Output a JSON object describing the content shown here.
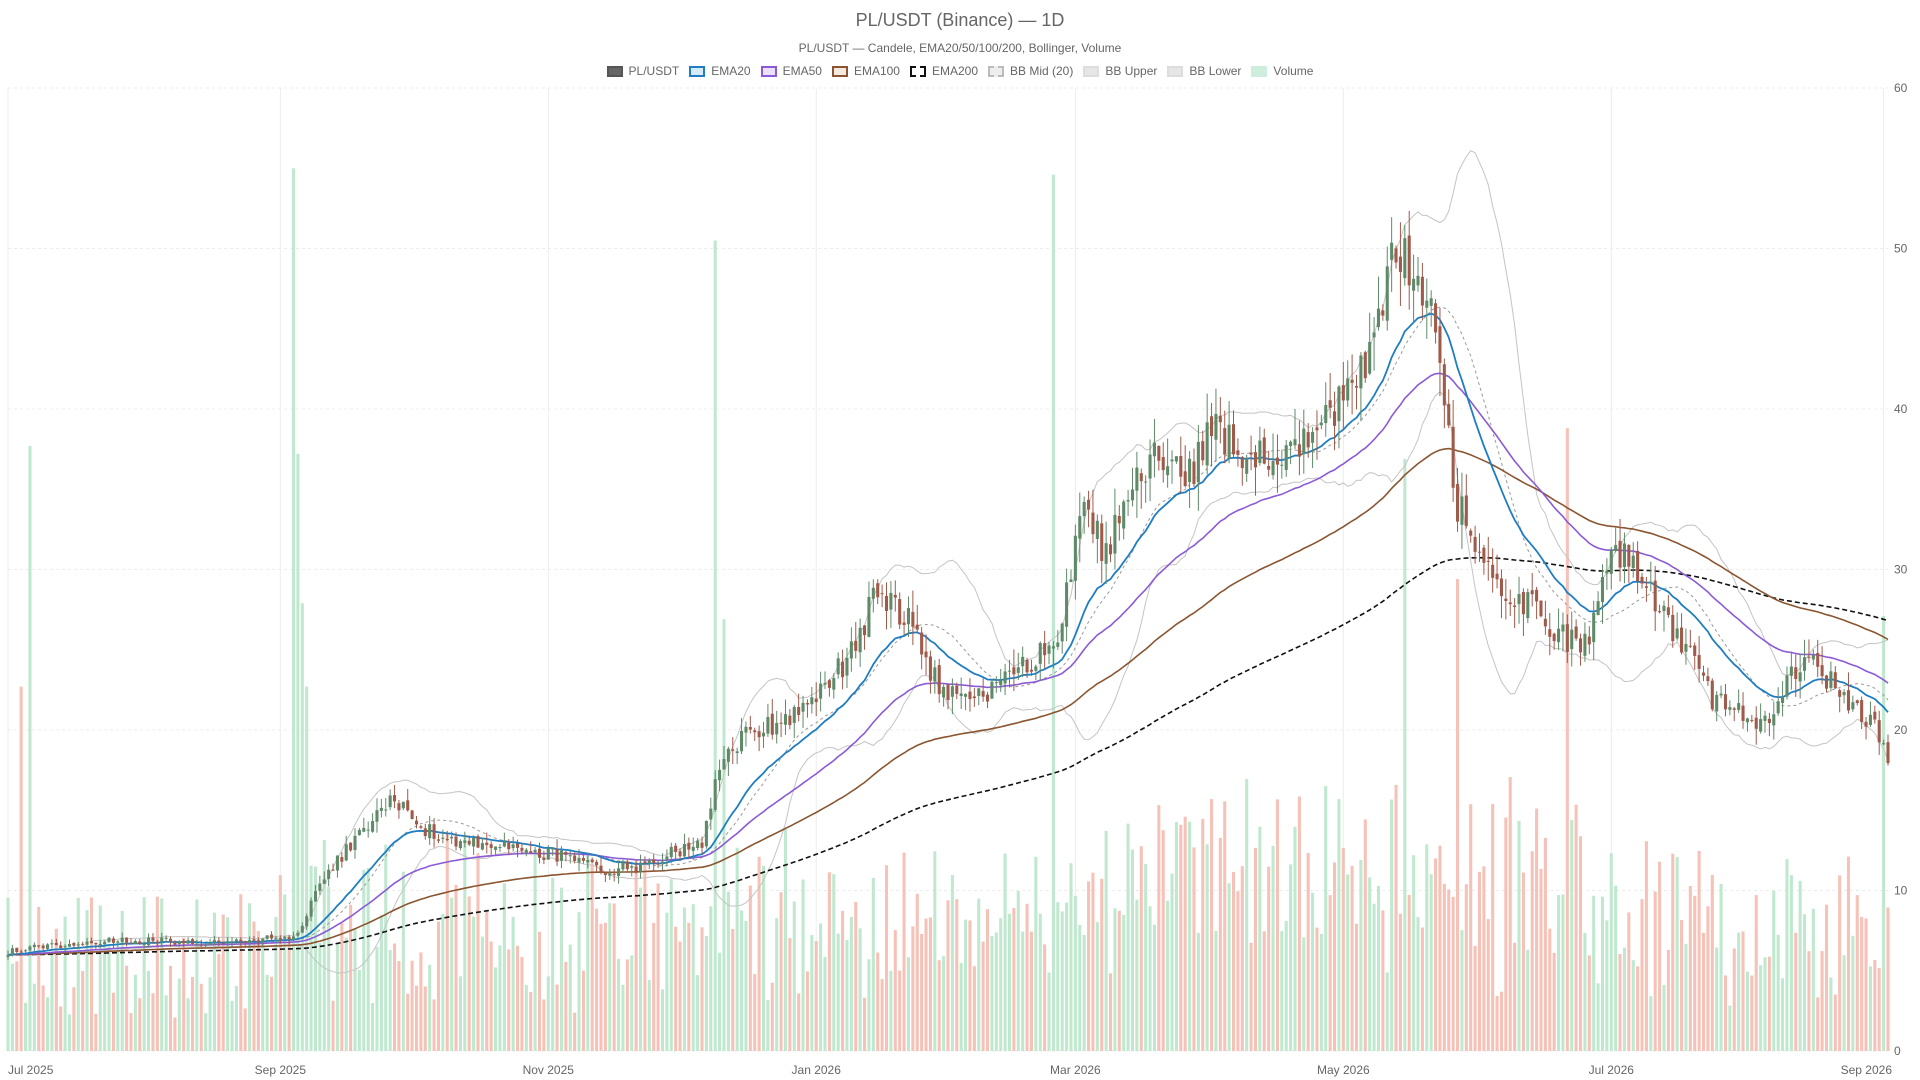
{
  "chart_data": {
    "type": "candlestick",
    "title": "PL/USDT (Binance) — 1D",
    "subtitle": "PL/USDT — Candele, EMA20/50/100/200, Bollinger, Volume",
    "legend": [
      {
        "label": "PL/USDT",
        "fill": "#666666",
        "stroke": "#555555",
        "dash": false
      },
      {
        "label": "EMA20",
        "fill": "#d6ebf7",
        "stroke": "#1f7dc2",
        "dash": false
      },
      {
        "label": "EMA50",
        "fill": "#eae0f7",
        "stroke": "#8b5ad6",
        "dash": false
      },
      {
        "label": "EMA100",
        "fill": "#f5e8df",
        "stroke": "#8a5530",
        "dash": false
      },
      {
        "label": "EMA200",
        "fill": "#ffffff",
        "stroke": "#111111",
        "dash": true
      },
      {
        "label": "BB Mid (20)",
        "fill": "#eeeeee",
        "stroke": "#bbbbbb",
        "dash": true
      },
      {
        "label": "BB Upper",
        "fill": "#e6e6e6",
        "stroke": "#dddddd",
        "dash": false
      },
      {
        "label": "BB Lower",
        "fill": "#e6e6e6",
        "stroke": "#dddddd",
        "dash": false
      },
      {
        "label": "Volume",
        "fill": "#cdeedd",
        "stroke": "#cdeedd",
        "dash": false
      }
    ],
    "x_ticks": [
      "Jul 2025",
      "Sep 2025",
      "Nov 2025",
      "Jan 2026",
      "Mar 2026",
      "May 2026",
      "Jul 2026",
      "Sep 2026"
    ],
    "x_tick_days": [
      0,
      62,
      123,
      184,
      243,
      304,
      365,
      427
    ],
    "y_ticks": [
      "0",
      "10",
      "20",
      "30",
      "40",
      "50",
      "60"
    ],
    "ylim": [
      0,
      60
    ],
    "grid": true,
    "legend_position": "top-center",
    "colors": {
      "up": "#5e8a68",
      "down": "#a05a4a",
      "vol_up": "#bfe8cf",
      "vol_down": "#f6c2b8",
      "ema20": "#1f7dc2",
      "ema50": "#8b5ad6",
      "ema100": "#8a5530",
      "ema200": "#111111",
      "bb_mid": "#999999",
      "bb_band": "#c4c4c4"
    },
    "price_anchors": {
      "days": [
        0,
        10,
        20,
        35,
        50,
        60,
        66,
        70,
        75,
        80,
        88,
        95,
        100,
        108,
        115,
        125,
        135,
        143,
        150,
        158,
        162,
        168,
        175,
        182,
        190,
        198,
        205,
        212,
        220,
        226,
        232,
        240,
        244,
        250,
        256,
        262,
        268,
        275,
        282,
        290,
        298,
        305,
        310,
        316,
        322,
        326,
        330,
        335,
        340,
        347,
        352,
        360,
        365,
        370,
        375,
        380,
        388,
        395,
        400,
        405,
        410,
        415,
        420,
        425,
        428
      ],
      "values": [
        6.2,
        6.6,
        6.8,
        6.9,
        6.7,
        7.0,
        7.2,
        10.0,
        11.8,
        13.5,
        15.8,
        13.8,
        13.3,
        12.9,
        12.6,
        12.2,
        11.2,
        11.5,
        12.2,
        13.0,
        17.5,
        19.8,
        20.5,
        21.5,
        24.0,
        28.5,
        27.0,
        22.5,
        21.8,
        22.8,
        24.0,
        26.5,
        34.0,
        31.0,
        35.0,
        37.0,
        35.5,
        39.0,
        37.0,
        36.5,
        38.5,
        41.0,
        44.0,
        50.0,
        48.0,
        43.0,
        34.0,
        31.0,
        29.0,
        27.5,
        26.0,
        25.0,
        32.0,
        30.0,
        28.0,
        26.0,
        22.0,
        21.0,
        20.5,
        23.0,
        24.5,
        23.0,
        21.5,
        20.0,
        18.5
      ]
    },
    "volume_spikes": [
      {
        "day": 5,
        "value": 37.7
      },
      {
        "day": 3,
        "value": 22.7
      },
      {
        "day": 65,
        "value": 55.0
      },
      {
        "day": 66,
        "value": 37.2
      },
      {
        "day": 67,
        "value": 27.9
      },
      {
        "day": 68,
        "value": 22.7
      },
      {
        "day": 161,
        "value": 50.5
      },
      {
        "day": 163,
        "value": 26.9
      },
      {
        "day": 238,
        "value": 54.6
      },
      {
        "day": 300,
        "value": 16.5
      },
      {
        "day": 318,
        "value": 36.9
      },
      {
        "day": 330,
        "value": 29.4
      },
      {
        "day": 355,
        "value": 38.8
      },
      {
        "day": 427,
        "value": 27.1
      }
    ]
  }
}
